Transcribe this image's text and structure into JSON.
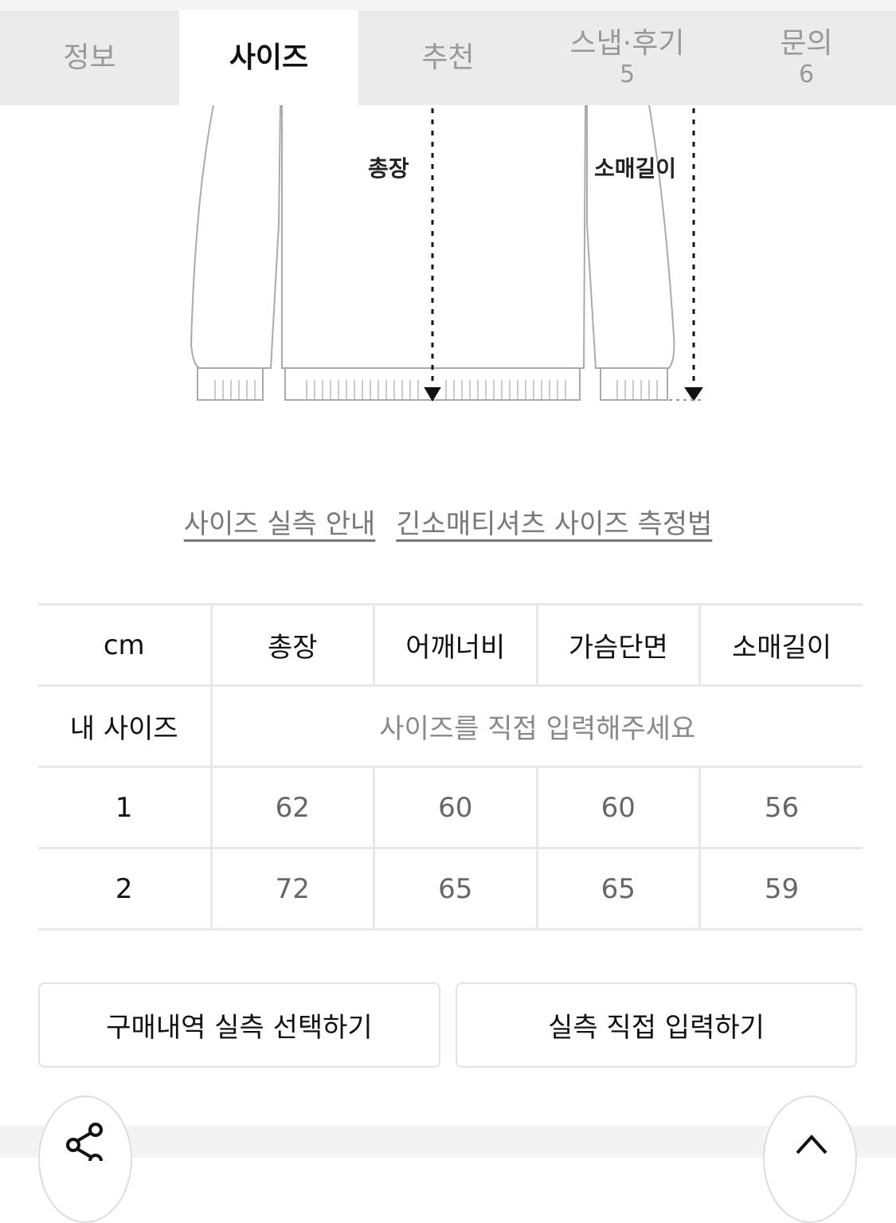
{
  "tabs": [
    {
      "label": "정보"
    },
    {
      "label": "사이즈",
      "active": true
    },
    {
      "label": "추천"
    },
    {
      "label": "스냅·후기",
      "count": "5"
    },
    {
      "label": "문의",
      "count": "6"
    }
  ],
  "diagram": {
    "total_length": "총장",
    "sleeve_length": "소매길이"
  },
  "links": {
    "size_guide": "사이즈 실측 안내",
    "measure_method": "긴소매티셔츠 사이즈 측정법"
  },
  "table": {
    "headers": [
      "cm",
      "총장",
      "어깨너비",
      "가슴단면",
      "소매길이"
    ],
    "my_size": {
      "label": "내 사이즈",
      "prompt": "사이즈를 직접 입력해주세요"
    },
    "rows": [
      [
        "1",
        "62",
        "60",
        "60",
        "56"
      ],
      [
        "2",
        "72",
        "65",
        "65",
        "59"
      ]
    ]
  },
  "buttons": {
    "purchase_history": "구매내역 실측 선택하기",
    "manual_input": "실측 직접 입력하기"
  },
  "icons": {
    "share": "share-icon",
    "top": "chevron-up-icon"
  }
}
